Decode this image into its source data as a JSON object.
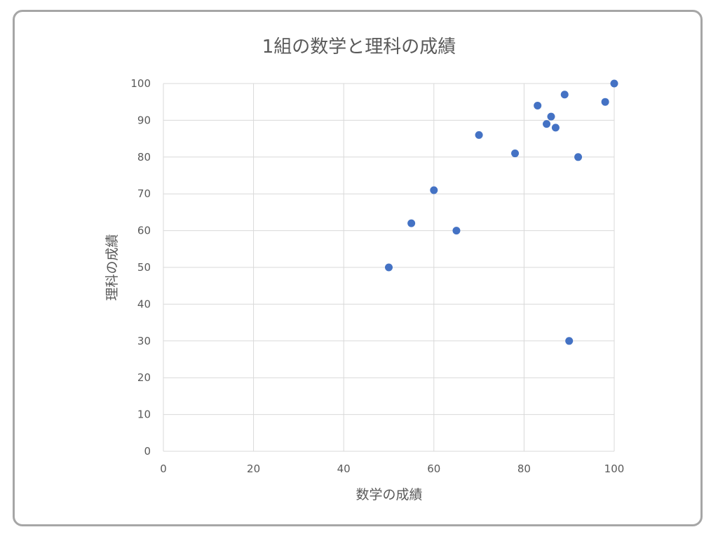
{
  "chart_data": {
    "type": "scatter",
    "title": "1組の数学と理科の成績",
    "xlabel": "数学の成績",
    "ylabel": "理科の成績",
    "xlim": [
      0,
      100
    ],
    "ylim": [
      0,
      100
    ],
    "x_ticks": [
      "0",
      "20",
      "40",
      "60",
      "80",
      "100"
    ],
    "y_ticks": [
      "0",
      "10",
      "20",
      "30",
      "40",
      "50",
      "60",
      "70",
      "80",
      "90",
      "100"
    ],
    "grid": true,
    "marker_color": "#4472c4",
    "points": [
      {
        "x": 50,
        "y": 50
      },
      {
        "x": 55,
        "y": 62
      },
      {
        "x": 60,
        "y": 71
      },
      {
        "x": 65,
        "y": 60
      },
      {
        "x": 70,
        "y": 86
      },
      {
        "x": 78,
        "y": 81
      },
      {
        "x": 83,
        "y": 94
      },
      {
        "x": 85,
        "y": 89
      },
      {
        "x": 86,
        "y": 91
      },
      {
        "x": 87,
        "y": 88
      },
      {
        "x": 89,
        "y": 97
      },
      {
        "x": 90,
        "y": 30
      },
      {
        "x": 92,
        "y": 80
      },
      {
        "x": 98,
        "y": 95
      },
      {
        "x": 100,
        "y": 100
      }
    ]
  }
}
